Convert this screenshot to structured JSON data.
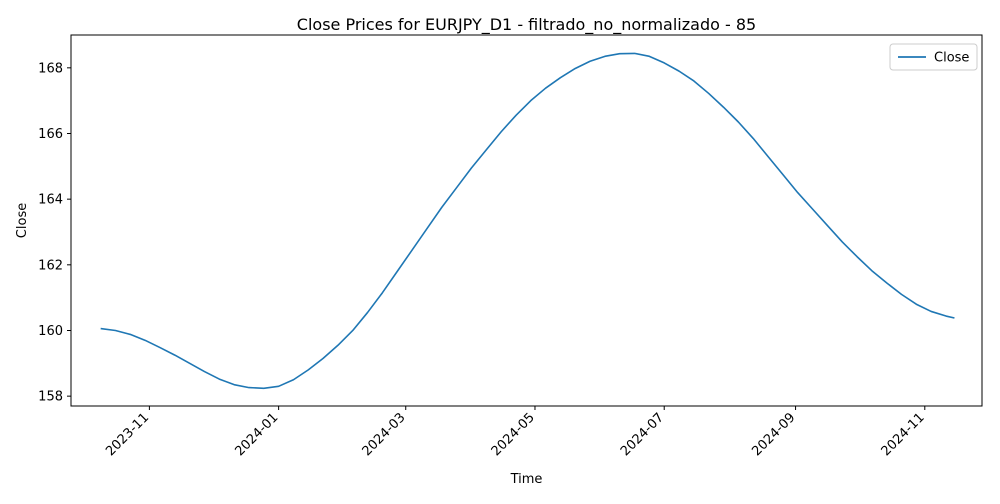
{
  "chart_data": {
    "type": "line",
    "title": "Close Prices for EURJPY_D1 - filtrado_no_normalizado - 85",
    "xlabel": "Time",
    "ylabel": "Close",
    "x_type": "date",
    "x_range": [
      "2023-09-25",
      "2024-11-28"
    ],
    "ylim": [
      157.7,
      169.0
    ],
    "x_ticks": [
      "2023-11-01",
      "2024-01-01",
      "2024-03-01",
      "2024-05-01",
      "2024-07-01",
      "2024-09-01",
      "2024-11-01"
    ],
    "x_tick_labels": [
      "2023-11",
      "2024-01",
      "2024-03",
      "2024-05",
      "2024-07",
      "2024-09",
      "2024-11"
    ],
    "y_ticks": [
      158,
      160,
      162,
      164,
      166,
      168
    ],
    "y_tick_labels": [
      "158",
      "160",
      "162",
      "164",
      "166",
      "168"
    ],
    "legend": {
      "position": "upper right",
      "entries": [
        "Close"
      ]
    },
    "grid": false,
    "series": [
      {
        "name": "Close",
        "color": "#1f77b4",
        "points": [
          [
            "2023-10-09",
            160.06
          ],
          [
            "2023-10-16",
            160.0
          ],
          [
            "2023-10-23",
            159.88
          ],
          [
            "2023-10-30",
            159.7
          ],
          [
            "2023-11-06",
            159.48
          ],
          [
            "2023-11-13",
            159.25
          ],
          [
            "2023-11-20",
            159.0
          ],
          [
            "2023-11-27",
            158.75
          ],
          [
            "2023-12-04",
            158.52
          ],
          [
            "2023-12-11",
            158.35
          ],
          [
            "2023-12-18",
            158.26
          ],
          [
            "2023-12-25",
            158.24
          ],
          [
            "2024-01-01",
            158.3
          ],
          [
            "2024-01-08",
            158.5
          ],
          [
            "2024-01-15",
            158.8
          ],
          [
            "2024-01-22",
            159.15
          ],
          [
            "2024-01-29",
            159.55
          ],
          [
            "2024-02-05",
            160.0
          ],
          [
            "2024-02-12",
            160.55
          ],
          [
            "2024-02-19",
            161.15
          ],
          [
            "2024-02-26",
            161.8
          ],
          [
            "2024-03-04",
            162.45
          ],
          [
            "2024-03-11",
            163.1
          ],
          [
            "2024-03-18",
            163.75
          ],
          [
            "2024-03-25",
            164.35
          ],
          [
            "2024-04-01",
            164.95
          ],
          [
            "2024-04-08",
            165.5
          ],
          [
            "2024-04-15",
            166.05
          ],
          [
            "2024-04-22",
            166.55
          ],
          [
            "2024-04-29",
            167.0
          ],
          [
            "2024-05-06",
            167.38
          ],
          [
            "2024-05-13",
            167.7
          ],
          [
            "2024-05-20",
            167.98
          ],
          [
            "2024-05-27",
            168.2
          ],
          [
            "2024-06-03",
            168.35
          ],
          [
            "2024-06-10",
            168.43
          ],
          [
            "2024-06-17",
            168.44
          ],
          [
            "2024-06-24",
            168.35
          ],
          [
            "2024-07-01",
            168.15
          ],
          [
            "2024-07-08",
            167.9
          ],
          [
            "2024-07-15",
            167.6
          ],
          [
            "2024-07-22",
            167.22
          ],
          [
            "2024-07-29",
            166.8
          ],
          [
            "2024-08-05",
            166.35
          ],
          [
            "2024-08-12",
            165.85
          ],
          [
            "2024-08-19",
            165.3
          ],
          [
            "2024-08-26",
            164.75
          ],
          [
            "2024-09-02",
            164.2
          ],
          [
            "2024-09-09",
            163.7
          ],
          [
            "2024-09-16",
            163.2
          ],
          [
            "2024-09-23",
            162.7
          ],
          [
            "2024-09-30",
            162.25
          ],
          [
            "2024-10-07",
            161.82
          ],
          [
            "2024-10-14",
            161.45
          ],
          [
            "2024-10-21",
            161.1
          ],
          [
            "2024-10-28",
            160.8
          ],
          [
            "2024-11-04",
            160.58
          ],
          [
            "2024-11-11",
            160.44
          ],
          [
            "2024-11-15",
            160.38
          ]
        ]
      }
    ]
  }
}
